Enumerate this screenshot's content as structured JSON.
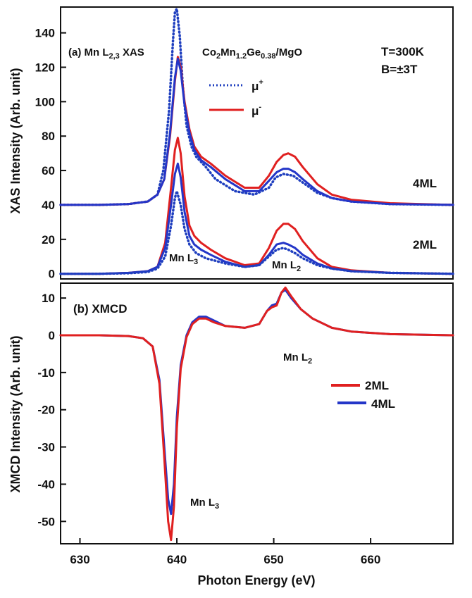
{
  "chart_data": [
    {
      "type": "line",
      "panel": "a",
      "panel_label": "(a) Mn L",
      "panel_label_sub": "2,3",
      "panel_label_tail": " XAS",
      "sample_label": {
        "p1": "Co",
        "s1": "2",
        "p2": "Mn",
        "s2": "1.2",
        "p3": "Ge",
        "s3": "0.38",
        "p4": "/MgO"
      },
      "conditions": [
        "T=300K",
        "B=±3T"
      ],
      "ylabel": "XAS Intensity (Arb. unit)",
      "xlim": [
        628,
        668.5
      ],
      "ylim": [
        -3,
        155
      ],
      "yticks": [
        0,
        20,
        40,
        60,
        80,
        100,
        120,
        140
      ],
      "legend": [
        {
          "name": "μ",
          "sup": "+",
          "style": "dotted",
          "color": "#1f3fbf"
        },
        {
          "name": "μ",
          "sup": "-",
          "style": "solid",
          "color": "#e02020"
        }
      ],
      "annotations": [
        "4ML",
        "2ML",
        "Mn L3",
        "Mn L2"
      ],
      "series": [
        {
          "name": "4ML μ+",
          "style": "dotted",
          "color": "#1f3fbf",
          "x": [
            628,
            632,
            635,
            637,
            638,
            638.6,
            639.2,
            639.6,
            639.8,
            640,
            640.3,
            640.6,
            641,
            641.5,
            642,
            643,
            644,
            646,
            648,
            649.5,
            650.2,
            651,
            652,
            653,
            654.5,
            656,
            658,
            662,
            668.5
          ],
          "y": [
            40,
            40,
            40.5,
            42,
            46,
            60,
            95,
            135,
            152,
            154,
            138,
            110,
            86,
            74,
            68,
            62,
            55,
            48,
            46,
            50,
            56,
            58,
            57,
            53,
            47,
            44,
            42,
            40.5,
            40
          ]
        },
        {
          "name": "4ML μ-",
          "style": "solid",
          "color": "#e02020",
          "x": [
            628,
            632,
            635,
            637,
            638,
            638.7,
            639.3,
            639.8,
            640.1,
            640.4,
            640.8,
            641.3,
            641.8,
            642.5,
            643.5,
            645,
            647,
            648.5,
            649.5,
            650.3,
            651,
            651.5,
            652.2,
            653,
            654.5,
            656,
            658,
            662,
            668.5
          ],
          "y": [
            40,
            40,
            40.5,
            42,
            46,
            55,
            80,
            112,
            126,
            120,
            100,
            84,
            74,
            68,
            64,
            57,
            50,
            50,
            57,
            65,
            69,
            70,
            68,
            62,
            52,
            46,
            43,
            41,
            40
          ]
        },
        {
          "name": "4ML blue",
          "style": "solid",
          "color": "#2436c8",
          "x": [
            628,
            632,
            635,
            637,
            638,
            638.7,
            639.3,
            639.8,
            640.1,
            640.4,
            640.8,
            641.3,
            641.8,
            642.5,
            643.5,
            645,
            647,
            648.5,
            649.5,
            650.3,
            651,
            651.5,
            652.2,
            653,
            654.5,
            656,
            658,
            662,
            668.5
          ],
          "y": [
            40,
            40,
            40.5,
            42,
            46,
            55,
            82,
            114,
            125,
            118,
            98,
            82,
            72,
            66,
            62,
            55,
            48,
            48,
            54,
            59,
            61,
            61,
            59,
            55,
            48,
            44,
            42,
            40.5,
            40
          ]
        },
        {
          "name": "2ML μ-",
          "style": "solid",
          "color": "#e02020",
          "x": [
            628,
            632,
            635,
            637,
            638,
            638.8,
            639.4,
            639.8,
            640.1,
            640.4,
            640.8,
            641.3,
            641.8,
            642.5,
            643.5,
            645,
            647,
            648.5,
            649.5,
            650.3,
            651,
            651.5,
            652.2,
            653,
            654.5,
            656,
            658,
            662,
            668.5
          ],
          "y": [
            0,
            0,
            0.5,
            1.5,
            4,
            18,
            50,
            72,
            79,
            70,
            45,
            28,
            22,
            18,
            14,
            9,
            5,
            6,
            15,
            25,
            29,
            29,
            26,
            19,
            9,
            4,
            2,
            0.5,
            0
          ]
        },
        {
          "name": "2ML blue",
          "style": "solid",
          "color": "#2436c8",
          "x": [
            628,
            632,
            635,
            637,
            638,
            638.8,
            639.4,
            639.8,
            640.1,
            640.4,
            640.8,
            641.3,
            641.8,
            642.5,
            643.5,
            645,
            647,
            648.5,
            649.5,
            650.3,
            651,
            651.5,
            652.2,
            653,
            654.5,
            656,
            658,
            662,
            668.5
          ],
          "y": [
            0,
            0,
            0.5,
            1.5,
            4,
            15,
            40,
            58,
            64,
            56,
            36,
            22,
            17,
            14,
            11,
            7,
            4,
            5,
            11,
            17,
            18,
            17,
            15,
            11,
            6,
            3,
            1.5,
            0.5,
            0
          ]
        },
        {
          "name": "2ML μ+ dotted",
          "style": "dotted",
          "color": "#1f3fbf",
          "x": [
            628,
            632,
            635,
            637,
            638,
            638.8,
            639.4,
            639.8,
            640,
            640.4,
            640.8,
            641.3,
            642,
            643,
            645,
            647,
            648.5,
            649.5,
            650.3,
            651,
            651.5,
            652.2,
            653,
            654.5,
            656,
            658,
            662,
            668.5
          ],
          "y": [
            0,
            0,
            0.3,
            1,
            3,
            10,
            28,
            44,
            48,
            40,
            26,
            17,
            12,
            9,
            6,
            4,
            5,
            10,
            14,
            15,
            14,
            12,
            9,
            5,
            3,
            1.5,
            0.5,
            0
          ]
        }
      ]
    },
    {
      "type": "line",
      "panel": "b",
      "panel_label": "(b) XMCD",
      "ylabel": "XMCD Intensity (Arb. unit)",
      "xlabel": "Photon Energy (eV)",
      "xlim": [
        628,
        668.5
      ],
      "ylim": [
        -56,
        14
      ],
      "yticks": [
        10,
        0,
        -10,
        -20,
        -30,
        -40,
        -50
      ],
      "xticks": [
        630,
        640,
        650,
        660
      ],
      "legend": [
        {
          "name": "2ML",
          "color": "#e02020"
        },
        {
          "name": "4ML",
          "color": "#2436c8"
        }
      ],
      "annotations": [
        "Mn L2",
        "Mn L3"
      ],
      "series": [
        {
          "name": "4ML",
          "color": "#2436c8",
          "x": [
            628,
            632,
            635,
            636.5,
            637.5,
            638.2,
            638.7,
            639.1,
            639.4,
            639.7,
            640,
            640.4,
            641,
            641.6,
            642.3,
            643,
            643.8,
            645,
            647,
            648.5,
            649.3,
            649.8,
            650.3,
            650.8,
            651.2,
            651.8,
            652.8,
            654,
            656,
            658,
            662,
            668.5
          ],
          "y": [
            0,
            0,
            -0.2,
            -0.8,
            -3,
            -12,
            -30,
            -44,
            -48,
            -40,
            -22,
            -8,
            0,
            3.5,
            5,
            5,
            4,
            2.5,
            2,
            3,
            6.5,
            8,
            8.5,
            11.5,
            12.2,
            10,
            7,
            4.5,
            2,
            1,
            0.3,
            0
          ]
        },
        {
          "name": "2ML",
          "color": "#e02020",
          "x": [
            628,
            632,
            635,
            636.5,
            637.5,
            638.2,
            638.7,
            639.1,
            639.4,
            639.7,
            640,
            640.4,
            641,
            641.6,
            642.3,
            643,
            643.8,
            645,
            647,
            648.5,
            649.3,
            649.8,
            650.3,
            650.8,
            651.2,
            651.8,
            652.8,
            654,
            656,
            658,
            662,
            668.5
          ],
          "y": [
            0,
            0,
            -0.2,
            -0.8,
            -3,
            -13,
            -33,
            -50,
            -55,
            -46,
            -25,
            -9,
            -0.5,
            3,
            4.5,
            4.5,
            3.5,
            2.5,
            2,
            3,
            6.5,
            7.5,
            8,
            11.5,
            12.8,
            10.5,
            7,
            4.5,
            2,
            1,
            0.3,
            0
          ]
        }
      ]
    }
  ]
}
